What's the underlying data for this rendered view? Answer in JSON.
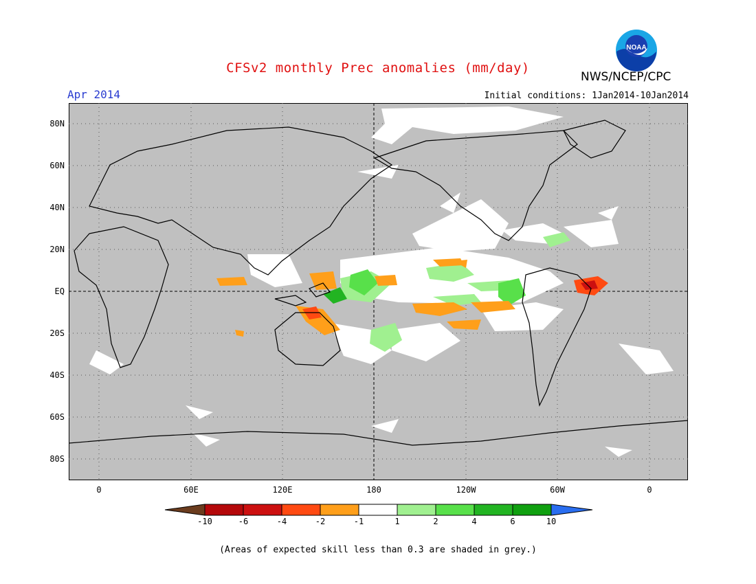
{
  "header": {
    "title": "CFSv2 monthly Prec anomalies (mm/day)",
    "month": "Apr 2014",
    "initial_conditions": "Initial conditions: 1Jan2014-10Jan2014",
    "agency": "NWS/NCEP/CPC",
    "logo_text": "NOAA"
  },
  "map": {
    "lat_labels": [
      "80N",
      "60N",
      "40N",
      "20N",
      "EQ",
      "20S",
      "40S",
      "60S",
      "80S"
    ],
    "lon_labels": [
      "0",
      "60E",
      "120E",
      "180",
      "120W",
      "60W",
      "0"
    ],
    "background_color": "#c0c0c0"
  },
  "colorbar": {
    "labels": [
      "-10",
      "-6",
      "-4",
      "-2",
      "-1",
      "1",
      "2",
      "4",
      "6",
      "10"
    ],
    "colors": [
      "#6b3c1e",
      "#b4080a",
      "#cc1010",
      "#ff4a12",
      "#ff9f1a",
      "#ffffff",
      "#a0f090",
      "#58e04a",
      "#22b422",
      "#10a010",
      "#2a6ef0"
    ]
  },
  "footnote": "(Areas of expected skill less than 0.3 are shaded in grey.)"
}
